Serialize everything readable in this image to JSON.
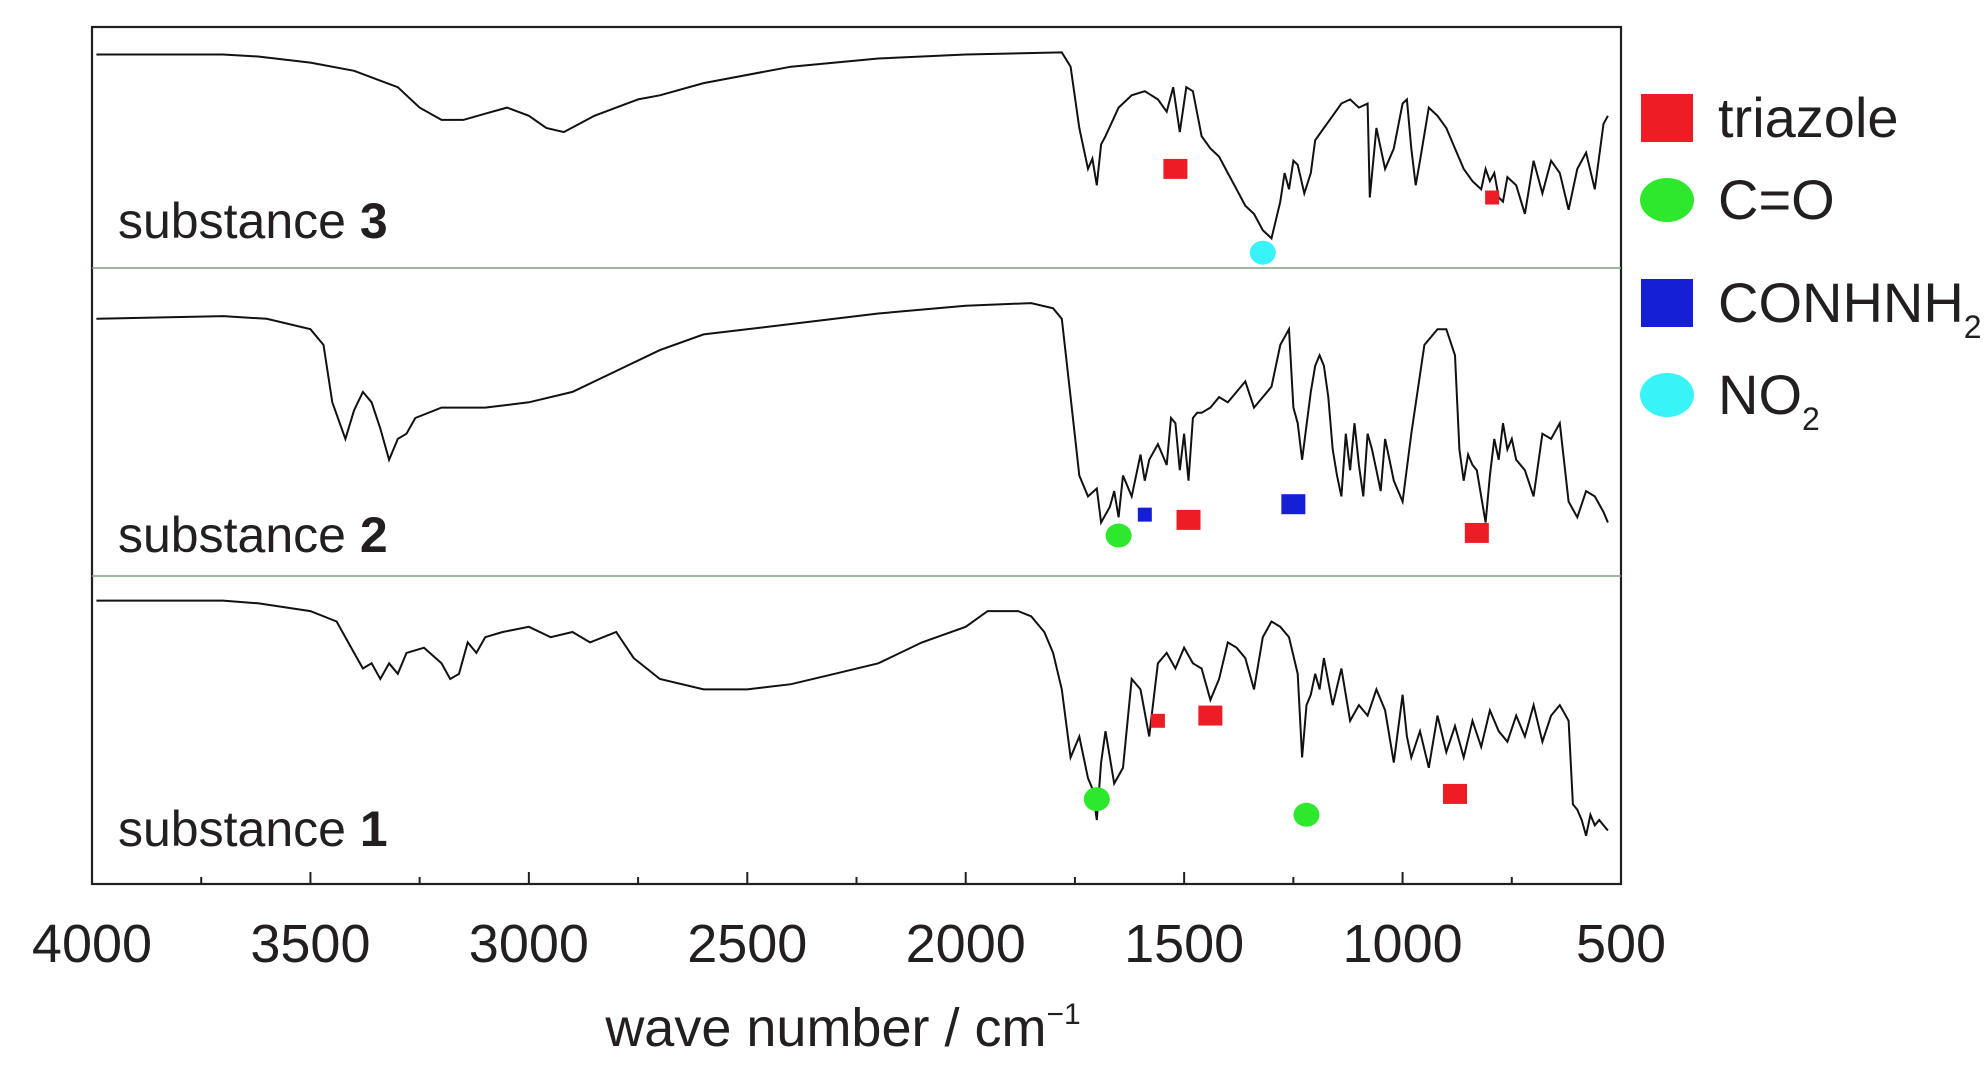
{
  "chart_data": {
    "type": "line",
    "xlabel": "wave number / cm",
    "xlabel_sup": "−1",
    "ylabel": "",
    "xlim": [
      4000,
      500
    ],
    "x_reversed": true,
    "x_ticks": [
      {
        "value": 4000,
        "label": "4000"
      },
      {
        "value": 3500,
        "label": "3500"
      },
      {
        "value": 3000,
        "label": "3000"
      },
      {
        "value": 2500,
        "label": "2500"
      },
      {
        "value": 2000,
        "label": "2000"
      },
      {
        "value": 1500,
        "label": "1500"
      },
      {
        "value": 1000,
        "label": "1000"
      },
      {
        "value": 500,
        "label": "500"
      }
    ],
    "ylim": [
      0,
      100
    ],
    "y_ticks": false,
    "grid": false,
    "legend": {
      "position": "right",
      "entries": [
        {
          "label": "triazole",
          "marker": "square",
          "color": "#ee1c25"
        },
        {
          "label": "C=O",
          "marker": "circle",
          "color": "#2ee82e"
        },
        {
          "label": "CONHNH",
          "sub": "2",
          "marker": "square",
          "color": "#1520d6"
        },
        {
          "label": "NO",
          "sub": "2",
          "marker": "circle",
          "color": "#38f3f7"
        }
      ]
    },
    "panels": [
      {
        "name_prefix": "substance ",
        "name_bold": "3",
        "x": [
          3990,
          3700,
          3620,
          3500,
          3400,
          3300,
          3250,
          3200,
          3150,
          3100,
          3050,
          3000,
          2960,
          2920,
          2850,
          2800,
          2750,
          2700,
          2600,
          2400,
          2200,
          2000,
          1780,
          1760,
          1740,
          1720,
          1710,
          1700,
          1690,
          1680,
          1650,
          1620,
          1590,
          1560,
          1540,
          1525,
          1510,
          1495,
          1480,
          1460,
          1440,
          1420,
          1400,
          1380,
          1360,
          1340,
          1320,
          1300,
          1280,
          1270,
          1260,
          1250,
          1240,
          1225,
          1210,
          1200,
          1180,
          1160,
          1140,
          1120,
          1100,
          1080,
          1075,
          1060,
          1040,
          1020,
          1000,
          990,
          980,
          970,
          960,
          940,
          920,
          900,
          880,
          860,
          840,
          820,
          810,
          800,
          790,
          780,
          770,
          760,
          740,
          720,
          700,
          680,
          660,
          640,
          620,
          600,
          580,
          560,
          540,
          530
        ],
        "y": [
          96,
          96,
          95,
          92,
          88,
          80,
          70,
          64,
          64,
          67,
          70,
          66,
          60,
          58,
          66,
          70,
          74,
          76,
          82,
          90,
          94,
          96,
          97,
          90,
          60,
          40,
          45,
          32,
          52,
          56,
          70,
          76,
          78,
          74,
          68,
          80,
          58,
          80,
          78,
          56,
          50,
          46,
          38,
          30,
          22,
          18,
          10,
          6,
          24,
          38,
          30,
          44,
          42,
          28,
          38,
          54,
          60,
          66,
          72,
          74,
          70,
          72,
          26,
          60,
          40,
          50,
          72,
          74,
          50,
          32,
          44,
          70,
          66,
          60,
          50,
          40,
          34,
          30,
          40,
          34,
          38,
          26,
          24,
          36,
          32,
          18,
          44,
          28,
          44,
          38,
          20,
          40,
          48,
          30,
          62,
          66
        ]
      },
      {
        "name_prefix": "substance ",
        "name_bold": "2",
        "x": [
          3990,
          3700,
          3600,
          3500,
          3470,
          3450,
          3420,
          3400,
          3380,
          3360,
          3340,
          3320,
          3300,
          3280,
          3260,
          3200,
          3100,
          3000,
          2900,
          2800,
          2700,
          2600,
          2400,
          2200,
          2000,
          1850,
          1800,
          1780,
          1760,
          1740,
          1720,
          1700,
          1690,
          1670,
          1660,
          1650,
          1640,
          1620,
          1600,
          1590,
          1580,
          1560,
          1540,
          1530,
          1520,
          1510,
          1500,
          1490,
          1480,
          1470,
          1460,
          1440,
          1420,
          1400,
          1380,
          1360,
          1340,
          1320,
          1300,
          1280,
          1260,
          1250,
          1240,
          1230,
          1210,
          1200,
          1190,
          1180,
          1170,
          1160,
          1150,
          1140,
          1130,
          1120,
          1110,
          1100,
          1090,
          1080,
          1070,
          1060,
          1050,
          1040,
          1030,
          1020,
          1000,
          980,
          950,
          920,
          900,
          880,
          870,
          860,
          850,
          840,
          830,
          820,
          810,
          800,
          790,
          780,
          770,
          760,
          750,
          740,
          720,
          700,
          680,
          660,
          640,
          620,
          600,
          580,
          560,
          540,
          530
        ],
        "y": [
          90,
          91,
          90,
          86,
          80,
          58,
          44,
          55,
          62,
          58,
          48,
          36,
          44,
          46,
          52,
          56,
          56,
          58,
          62,
          70,
          78,
          84,
          88,
          92,
          95,
          96,
          94,
          90,
          60,
          30,
          22,
          25,
          12,
          18,
          24,
          14,
          30,
          22,
          38,
          28,
          36,
          42,
          34,
          52,
          50,
          32,
          46,
          28,
          52,
          54,
          54,
          56,
          60,
          58,
          62,
          66,
          56,
          60,
          64,
          80,
          86,
          56,
          50,
          36,
          62,
          72,
          76,
          72,
          60,
          40,
          30,
          22,
          46,
          32,
          50,
          34,
          22,
          46,
          40,
          32,
          24,
          44,
          36,
          28,
          20,
          46,
          80,
          86,
          86,
          76,
          40,
          28,
          38,
          34,
          32,
          22,
          12,
          30,
          44,
          36,
          50,
          40,
          44,
          36,
          32,
          22,
          46,
          44,
          50,
          20,
          14,
          24,
          22,
          16,
          12
        ]
      },
      {
        "name_prefix": "substance ",
        "name_bold": "1",
        "x": [
          3990,
          3700,
          3620,
          3500,
          3440,
          3400,
          3380,
          3360,
          3340,
          3320,
          3300,
          3280,
          3240,
          3200,
          3180,
          3160,
          3140,
          3120,
          3100,
          3060,
          3000,
          2950,
          2900,
          2860,
          2800,
          2760,
          2700,
          2600,
          2500,
          2400,
          2300,
          2200,
          2100,
          2000,
          1950,
          1880,
          1850,
          1820,
          1800,
          1780,
          1760,
          1740,
          1720,
          1710,
          1700,
          1690,
          1680,
          1660,
          1640,
          1620,
          1600,
          1580,
          1560,
          1540,
          1520,
          1500,
          1480,
          1460,
          1440,
          1420,
          1400,
          1380,
          1360,
          1340,
          1320,
          1300,
          1280,
          1260,
          1240,
          1230,
          1220,
          1210,
          1200,
          1190,
          1180,
          1160,
          1140,
          1120,
          1100,
          1080,
          1060,
          1040,
          1020,
          1000,
          990,
          980,
          960,
          940,
          920,
          900,
          880,
          860,
          840,
          820,
          800,
          780,
          760,
          740,
          720,
          700,
          680,
          660,
          640,
          620,
          610,
          600,
          590,
          580,
          570,
          560,
          550,
          540,
          530
        ],
        "y": [
          100,
          100,
          99,
          96,
          92,
          80,
          74,
          76,
          70,
          76,
          72,
          80,
          82,
          76,
          70,
          72,
          84,
          80,
          86,
          88,
          90,
          86,
          88,
          84,
          88,
          78,
          70,
          66,
          66,
          68,
          72,
          76,
          84,
          90,
          96,
          96,
          94,
          88,
          80,
          66,
          40,
          48,
          32,
          28,
          16,
          38,
          50,
          30,
          36,
          70,
          66,
          48,
          76,
          80,
          74,
          82,
          76,
          74,
          62,
          70,
          84,
          82,
          78,
          66,
          86,
          92,
          90,
          86,
          72,
          40,
          60,
          64,
          72,
          66,
          78,
          60,
          74,
          54,
          60,
          56,
          66,
          58,
          38,
          64,
          48,
          40,
          50,
          36,
          56,
          42,
          52,
          40,
          54,
          44,
          58,
          50,
          46,
          56,
          48,
          60,
          46,
          56,
          60,
          54,
          22,
          20,
          16,
          10,
          18,
          14,
          16,
          14,
          12
        ]
      }
    ],
    "annotations": [
      {
        "panel": 0,
        "x": 1520,
        "y": 40,
        "marker": "square",
        "color": "#ee1c25"
      },
      {
        "panel": 0,
        "x": 795,
        "y": 26,
        "marker": "square-small",
        "color": "#ee1c25"
      },
      {
        "panel": 0,
        "x": 1320,
        "y": -1,
        "marker": "circle",
        "color": "#38f3f7"
      },
      {
        "panel": 1,
        "x": 1650,
        "y": 7,
        "marker": "circle",
        "color": "#2ee82e"
      },
      {
        "panel": 1,
        "x": 1590,
        "y": 15,
        "marker": "square-small",
        "color": "#1520d6"
      },
      {
        "panel": 1,
        "x": 1490,
        "y": 13,
        "marker": "square",
        "color": "#ee1c25"
      },
      {
        "panel": 1,
        "x": 1250,
        "y": 19,
        "marker": "square",
        "color": "#1520d6"
      },
      {
        "panel": 1,
        "x": 830,
        "y": 8,
        "marker": "square",
        "color": "#ee1c25"
      },
      {
        "panel": 2,
        "x": 1700,
        "y": 24,
        "marker": "circle",
        "color": "#2ee82e"
      },
      {
        "panel": 2,
        "x": 1560,
        "y": 54,
        "marker": "square-small",
        "color": "#ee1c25"
      },
      {
        "panel": 2,
        "x": 1440,
        "y": 56,
        "marker": "square",
        "color": "#ee1c25"
      },
      {
        "panel": 2,
        "x": 1220,
        "y": 18,
        "marker": "circle",
        "color": "#2ee82e"
      },
      {
        "panel": 2,
        "x": 880,
        "y": 26,
        "marker": "square",
        "color": "#ee1c25"
      }
    ]
  }
}
